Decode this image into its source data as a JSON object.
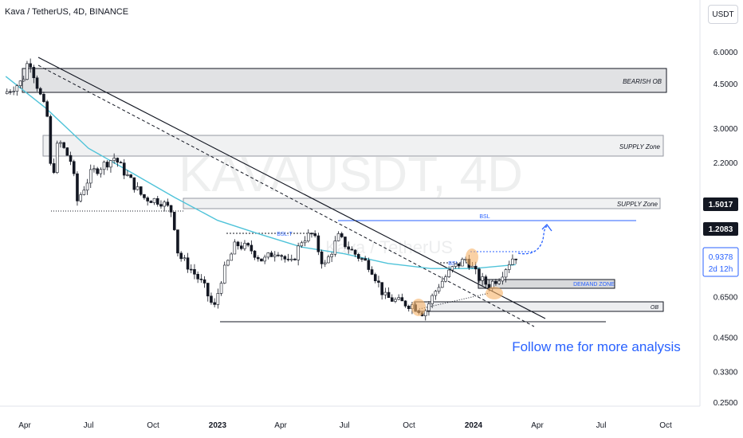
{
  "header": {
    "symbol_title": "Kava / TetherUS, 4D, BINANCE",
    "currency_button": "USDT"
  },
  "watermark": {
    "symbol": "KAVAUSDT, 4D",
    "sub": "Kava / TetherUS"
  },
  "zones": {
    "bearish_ob": "BEARISH OB",
    "supply_upper": "SUPPLY Zone",
    "supply_lower": "SUPPLY Zone",
    "demand": "DEMAND ZONE",
    "ob": "OB",
    "bsl_upper": "BSL",
    "bsl_left": "BSL.T",
    "bsl_right": "BSL.T"
  },
  "follow_text": "Follow me for more analysis",
  "colors": {
    "up": "#26a69a",
    "down": "#2962ff",
    "candle": "#131722",
    "ma": "#4fc3d9",
    "accent_blue": "#2962ff",
    "badge_dark": "#131722",
    "badge_live": "#2962ff",
    "circle": "#f7b267"
  },
  "chart_data": {
    "type": "candlestick",
    "title": "Kava / TetherUS, 4D, BINANCE",
    "y_scale": "log",
    "y_ticks": [
      6.0,
      4.5,
      3.0,
      2.2,
      0.65,
      0.45,
      0.33,
      0.25
    ],
    "y_tick_labels": [
      "6.0000",
      "4.5000",
      "3.0000",
      "2.2000",
      "0.6500",
      "0.4500",
      "0.3300",
      "0.2500"
    ],
    "x_ticks": [
      "Apr",
      "Jul",
      "Oct",
      "2023",
      "Apr",
      "Jul",
      "Oct",
      "2024",
      "Apr",
      "Jul",
      "Oct"
    ],
    "price_badges": [
      {
        "value": "1.5017",
        "style": "dark"
      },
      {
        "value": "1.2083",
        "style": "dark"
      },
      {
        "value": "0.9378",
        "sub": "2d 12h",
        "style": "live"
      }
    ],
    "price_path": [
      [
        "2022-03-05",
        4.1
      ],
      [
        "2022-04-01",
        4.6
      ],
      [
        "2022-04-10",
        5.7
      ],
      [
        "2022-04-22",
        4.4
      ],
      [
        "2022-05-08",
        3.2
      ],
      [
        "2022-05-12",
        1.8
      ],
      [
        "2022-05-22",
        2.7
      ],
      [
        "2022-06-10",
        2.2
      ],
      [
        "2022-06-18",
        1.55
      ],
      [
        "2022-07-08",
        2.0
      ],
      [
        "2022-08-10",
        2.3
      ],
      [
        "2022-08-25",
        2.0
      ],
      [
        "2022-09-20",
        1.6
      ],
      [
        "2022-10-15",
        1.55
      ],
      [
        "2022-11-01",
        1.4
      ],
      [
        "2022-11-09",
        0.95
      ],
      [
        "2022-11-25",
        0.85
      ],
      [
        "2022-12-15",
        0.72
      ],
      [
        "2022-12-30",
        0.58
      ],
      [
        "2023-01-10",
        0.78
      ],
      [
        "2023-01-30",
        1.05
      ],
      [
        "2023-02-20",
        1.0
      ],
      [
        "2023-03-10",
        0.9
      ],
      [
        "2023-03-30",
        1.0
      ],
      [
        "2023-04-18",
        0.86
      ],
      [
        "2023-05-05",
        1.1
      ],
      [
        "2023-05-20",
        1.15
      ],
      [
        "2023-06-05",
        0.85
      ],
      [
        "2023-06-25",
        1.12
      ],
      [
        "2023-07-15",
        0.98
      ],
      [
        "2023-08-10",
        0.86
      ],
      [
        "2023-08-30",
        0.65
      ],
      [
        "2023-09-20",
        0.62
      ],
      [
        "2023-10-12",
        0.6
      ],
      [
        "2023-10-25",
        0.56
      ],
      [
        "2023-11-15",
        0.72
      ],
      [
        "2023-12-05",
        0.84
      ],
      [
        "2023-12-25",
        0.92
      ],
      [
        "2024-01-10",
        0.78
      ],
      [
        "2024-01-25",
        0.72
      ],
      [
        "2024-02-10",
        0.78
      ],
      [
        "2024-02-25",
        0.9
      ],
      [
        "2024-03-02",
        0.94
      ]
    ],
    "ma_path": [
      [
        "2022-03-05",
        4.8
      ],
      [
        "2022-05-01",
        3.6
      ],
      [
        "2022-07-01",
        2.5
      ],
      [
        "2022-09-01",
        2.0
      ],
      [
        "2022-11-01",
        1.6
      ],
      [
        "2023-01-01",
        1.3
      ],
      [
        "2023-03-01",
        1.15
      ],
      [
        "2023-05-01",
        1.02
      ],
      [
        "2023-07-01",
        0.96
      ],
      [
        "2023-09-01",
        0.88
      ],
      [
        "2023-11-01",
        0.84
      ],
      [
        "2024-01-01",
        0.84
      ],
      [
        "2024-03-01",
        0.87
      ]
    ]
  }
}
